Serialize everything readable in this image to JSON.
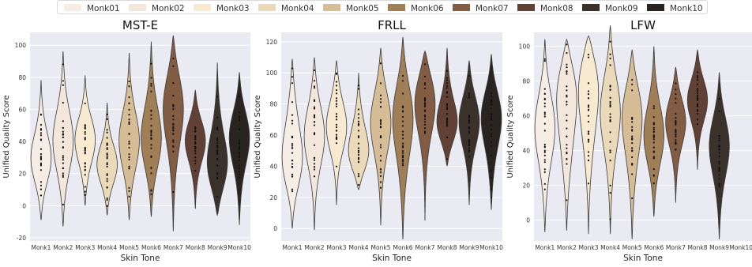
{
  "legend": {
    "placement": "top-center",
    "entries": [
      "Monk01",
      "Monk02",
      "Monk03",
      "Monk04",
      "Monk05",
      "Monk06",
      "Monk07",
      "Monk08",
      "Monk09",
      "Monk10"
    ]
  },
  "colors": {
    "monk": [
      "#f6ede4",
      "#f3e7db",
      "#f7ead0",
      "#eadaba",
      "#d7bd96",
      "#a07e56",
      "#825c43",
      "#604134",
      "#3a312a",
      "#292420"
    ],
    "panel_bg": "#eaeaf2",
    "grid": "#ffffff"
  },
  "chart_data": [
    {
      "type": "violin",
      "title": "MST-E",
      "xlabel": "Skin Tone",
      "ylabel": "Unified Quality Score",
      "categories": [
        "Monk1",
        "Monk2",
        "Monk3",
        "Monk4",
        "Monk5",
        "Monk6",
        "Monk7",
        "Monk8",
        "Monk9",
        "Monk10"
      ],
      "ylim": [
        -22,
        108
      ],
      "yticks": [
        -20,
        0,
        20,
        40,
        60,
        80,
        100
      ],
      "grid": true,
      "series": [
        {
          "min": -9,
          "max": 78,
          "median": 30,
          "q1": 15,
          "q3": 50,
          "mode": 28
        },
        {
          "min": -13,
          "max": 96,
          "median": 40,
          "q1": 20,
          "q3": 62,
          "mode": 40
        },
        {
          "min": 0,
          "max": 81,
          "median": 38,
          "q1": 22,
          "q3": 52,
          "mode": 42
        },
        {
          "min": -6,
          "max": 64,
          "median": 25,
          "q1": 12,
          "q3": 40,
          "mode": 25
        },
        {
          "min": -9,
          "max": 95,
          "median": 40,
          "q1": 20,
          "q3": 58,
          "mode": 40
        },
        {
          "min": -7,
          "max": 102,
          "median": 45,
          "q1": 22,
          "q3": 65,
          "mode": 40
        },
        {
          "min": -16,
          "max": 106,
          "median": 58,
          "q1": 35,
          "q3": 75,
          "mode": 65
        },
        {
          "min": -2,
          "max": 72,
          "median": 40,
          "q1": 28,
          "q3": 48,
          "mode": 42
        },
        {
          "min": -6,
          "max": 89,
          "median": 30,
          "q1": 18,
          "q3": 48,
          "mode": 22
        },
        {
          "min": -12,
          "max": 83,
          "median": 40,
          "q1": 22,
          "q3": 52,
          "mode": 45
        }
      ]
    },
    {
      "type": "violin",
      "title": "FRLL",
      "xlabel": "Skin Tone",
      "ylabel": "Unified Quality Score",
      "categories": [
        "Monk1",
        "Monk2",
        "Monk3",
        "Monk4",
        "Monk5",
        "Monk6",
        "Monk7",
        "Monk8",
        "Monk9",
        "Monk10"
      ],
      "ylim": [
        -8,
        126
      ],
      "yticks": [
        0,
        20,
        40,
        60,
        80,
        100,
        120
      ],
      "grid": true,
      "series": [
        {
          "min": 0,
          "max": 109,
          "median": 60,
          "q1": 35,
          "q3": 80,
          "mode": 40
        },
        {
          "min": -1,
          "max": 110,
          "median": 62,
          "q1": 38,
          "q3": 82,
          "mode": 60
        },
        {
          "min": 15,
          "max": 108,
          "median": 70,
          "q1": 55,
          "q3": 85,
          "mode": 65
        },
        {
          "min": 25,
          "max": 100,
          "median": 55,
          "q1": 42,
          "q3": 72,
          "mode": 45
        },
        {
          "min": 2,
          "max": 116,
          "median": 68,
          "q1": 50,
          "q3": 85,
          "mode": 70
        },
        {
          "min": -7,
          "max": 123,
          "median": 65,
          "q1": 40,
          "q3": 85,
          "mode": 75
        },
        {
          "min": 5,
          "max": 114,
          "median": 82,
          "q1": 70,
          "q3": 92,
          "mode": 85
        },
        {
          "min": 40,
          "max": 116,
          "median": 72,
          "q1": 62,
          "q3": 90,
          "mode": 65
        },
        {
          "min": 15,
          "max": 108,
          "median": 70,
          "q1": 55,
          "q3": 82,
          "mode": 70
        },
        {
          "min": 12,
          "max": 112,
          "median": 65,
          "q1": 45,
          "q3": 80,
          "mode": 75
        }
      ]
    },
    {
      "type": "violin",
      "title": "LFW",
      "xlabel": "Skin Tone",
      "ylabel": "Unified Quality Score",
      "categories": [
        "Monk1",
        "Monk2",
        "Monk3",
        "Monk4",
        "Monk5",
        "Monk6",
        "Monk7",
        "Monk8",
        "Monk9",
        "Monk10"
      ],
      "ylim": [
        -12,
        108
      ],
      "yticks": [
        0,
        20,
        40,
        60,
        80,
        100
      ],
      "grid": true,
      "series": [
        {
          "min": -7,
          "max": 104,
          "median": 50,
          "q1": 30,
          "q3": 70,
          "mode": 55
        },
        {
          "min": -6,
          "max": 104,
          "median": 55,
          "q1": 32,
          "q3": 80,
          "mode": 80
        },
        {
          "min": -8,
          "max": 106,
          "median": 65,
          "q1": 40,
          "q3": 85,
          "mode": 85
        },
        {
          "min": -8,
          "max": 112,
          "median": 60,
          "q1": 35,
          "q3": 82,
          "mode": 65
        },
        {
          "min": -11,
          "max": 98,
          "median": 50,
          "q1": 30,
          "q3": 70,
          "mode": 65
        },
        {
          "min": 2,
          "max": 100,
          "median": 50,
          "q1": 35,
          "q3": 62,
          "mode": 48
        },
        {
          "min": 10,
          "max": 88,
          "median": 58,
          "q1": 45,
          "q3": 68,
          "mode": 58
        },
        {
          "min": 29,
          "max": 98,
          "median": 70,
          "q1": 60,
          "q3": 80,
          "mode": 70
        },
        {
          "min": -11,
          "max": 85,
          "median": 40,
          "q1": 25,
          "q3": 52,
          "mode": 45
        },
        {
          "empty": true
        }
      ]
    }
  ]
}
